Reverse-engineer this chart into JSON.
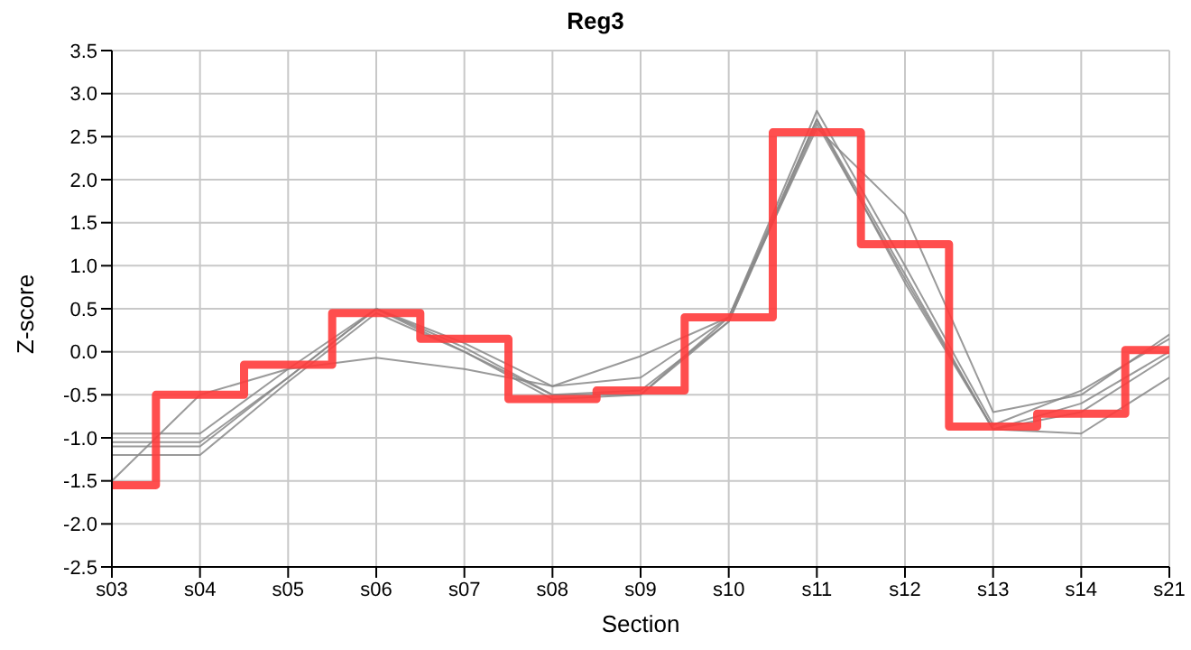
{
  "chart_data": {
    "type": "line",
    "title": "Reg3",
    "xlabel": "Section",
    "ylabel": "Z-score",
    "categories": [
      "s03",
      "s04",
      "s05",
      "s06",
      "s07",
      "s08",
      "s09",
      "s10",
      "s11",
      "s12",
      "s13",
      "s14",
      "s21"
    ],
    "series": [
      {
        "color": "#888888",
        "values": [
          -1.5,
          -0.5,
          -0.2,
          -0.07,
          -0.2,
          -0.4,
          -0.3,
          0.4,
          2.6,
          1.6,
          -0.7,
          -0.5,
          0.2
        ]
      },
      {
        "color": "#888888",
        "values": [
          -0.95,
          -0.95,
          -0.2,
          0.5,
          0.1,
          -0.4,
          -0.05,
          0.4,
          2.8,
          1.0,
          -0.85,
          -0.45,
          0.15
        ]
      },
      {
        "color": "#888888",
        "values": [
          -1.05,
          -1.05,
          -0.3,
          0.5,
          0.05,
          -0.5,
          -0.45,
          0.35,
          2.7,
          0.9,
          -0.9,
          -0.6,
          0.0
        ]
      },
      {
        "color": "#888888",
        "values": [
          -1.1,
          -1.1,
          -0.3,
          0.5,
          0.0,
          -0.5,
          -0.5,
          0.35,
          2.65,
          0.85,
          -0.9,
          -0.7,
          -0.05
        ]
      },
      {
        "color": "#888888",
        "values": [
          -1.2,
          -1.2,
          -0.35,
          0.45,
          0.0,
          -0.55,
          -0.5,
          0.4,
          2.7,
          0.8,
          -0.9,
          -0.95,
          -0.3
        ]
      },
      {
        "type": "step",
        "color": "#ff3b3b",
        "values": [
          -1.55,
          -0.5,
          -0.15,
          0.45,
          0.15,
          -0.55,
          -0.45,
          0.4,
          2.55,
          1.25,
          -0.87,
          -0.72,
          0.02
        ]
      }
    ],
    "ylim": [
      -2.5,
      3.5
    ],
    "yticks": [
      -2.5,
      {
        "value": -2,
        "label": "-2.0"
      },
      -1.5,
      {
        "value": -1,
        "label": "-1.0"
      },
      -0.5,
      {
        "value": 0,
        "label": "0.0"
      },
      0.5,
      {
        "value": 1,
        "label": "1.0"
      },
      1.5,
      {
        "value": 2,
        "label": "2.0"
      },
      2.5,
      {
        "value": 3,
        "label": "3.0"
      },
      3.5
    ],
    "grid": true,
    "legend": false,
    "marker": "none"
  }
}
